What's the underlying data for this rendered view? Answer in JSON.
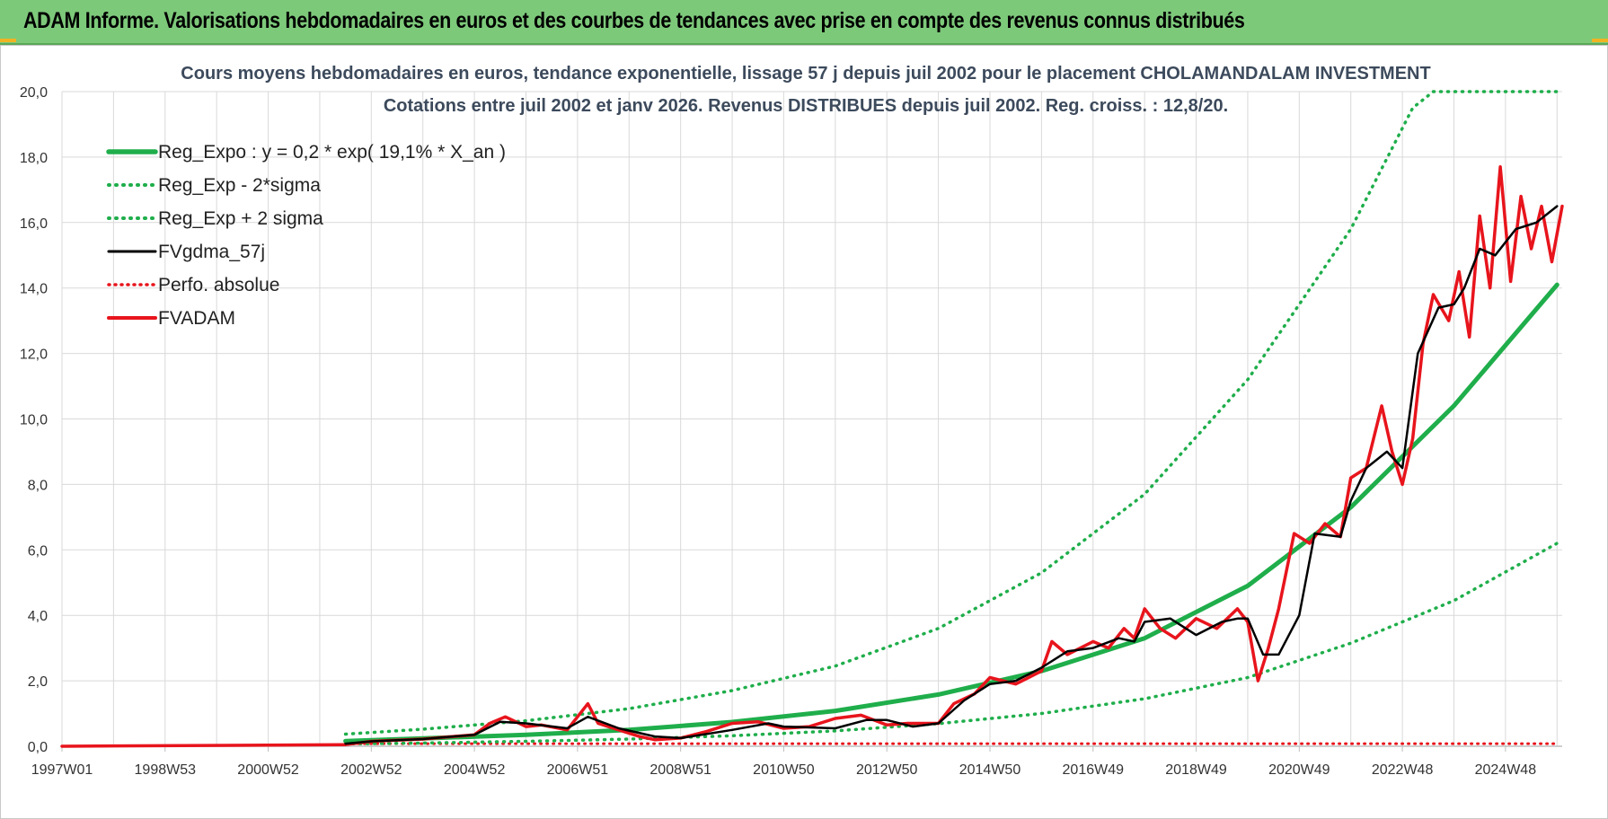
{
  "header": {
    "title": "ADAM Informe. Valorisations hebdomadaires en euros et des courbes de tendances avec prise en compte des revenus connus distribués"
  },
  "colors": {
    "banner": "#7dc97a",
    "green": "#1fae4b",
    "red": "#e8141c",
    "black": "#000000",
    "grid": "#d9d9d9"
  },
  "chart_data": {
    "type": "line",
    "title_line1": "Cours moyens hebdomadaires en euros, tendance exponentielle, lissage 57 j depuis juil 2002 pour le placement CHOLAMANDALAM INVESTMENT",
    "title_line2": "Cotations entre juil 2002 et janv 2026. Revenus DISTRIBUES depuis juil 2002. Reg. croiss. : 12,8/20.",
    "xlabel": "",
    "ylabel": "",
    "ylim": [
      0,
      20
    ],
    "y_ticks": [
      "0,0",
      "2,0",
      "4,0",
      "6,0",
      "8,0",
      "10,0",
      "12,0",
      "14,0",
      "16,0",
      "18,0",
      "20,0"
    ],
    "x_ticks": [
      "1997W01",
      "1998W53",
      "2000W52",
      "2002W52",
      "2004W52",
      "2006W51",
      "2008W51",
      "2010W50",
      "2012W50",
      "2014W50",
      "2016W49",
      "2018W49",
      "2020W49",
      "2022W48",
      "2024W48"
    ],
    "xlim": [
      1997.0,
      2026.1
    ],
    "grid": true,
    "legend_position": "top-left",
    "series": [
      {
        "name": "Reg_Expo : y = 0,2 * exp( 19,1% *  X_an )",
        "style": "solid-green",
        "x": [
          2002.5,
          2004,
          2006,
          2008,
          2010,
          2012,
          2014,
          2016,
          2018,
          2020,
          2022,
          2024,
          2026
        ],
        "y": [
          0.16,
          0.24,
          0.35,
          0.5,
          0.74,
          1.08,
          1.58,
          2.3,
          3.3,
          4.9,
          7.3,
          10.4,
          14.1
        ]
      },
      {
        "name": "Reg_Exp - 2*sigma",
        "style": "dotted-green",
        "x": [
          2002.5,
          2004,
          2006,
          2008,
          2010,
          2012,
          2014,
          2016,
          2018,
          2020,
          2022,
          2024,
          2026
        ],
        "y": [
          0.07,
          0.1,
          0.15,
          0.22,
          0.32,
          0.47,
          0.69,
          1.0,
          1.45,
          2.1,
          3.15,
          4.45,
          6.2
        ]
      },
      {
        "name": "Reg_Exp + 2 sigma",
        "style": "dotted-green",
        "x": [
          2002.5,
          2004,
          2006,
          2008,
          2010,
          2012,
          2014,
          2016,
          2018,
          2020,
          2022,
          2023.2,
          2023.6,
          2026
        ],
        "y": [
          0.37,
          0.52,
          0.78,
          1.15,
          1.7,
          2.45,
          3.6,
          5.3,
          7.7,
          11.2,
          15.8,
          19.5,
          20.0,
          20.0
        ]
      },
      {
        "name": "FVgdma_57j",
        "style": "solid-black",
        "x": [
          2002.5,
          2003,
          2004,
          2005,
          2005.5,
          2006,
          2006.8,
          2007.2,
          2007.8,
          2008.5,
          2009,
          2010,
          2010.7,
          2011,
          2012,
          2012.6,
          2013,
          2013.5,
          2014,
          2014.5,
          2015,
          2015.5,
          2016,
          2016.5,
          2017,
          2017.5,
          2017.8,
          2018,
          2018.5,
          2019,
          2019.5,
          2019.8,
          2020,
          2020.3,
          2020.6,
          2021,
          2021.3,
          2021.8,
          2022,
          2022.3,
          2022.7,
          2023,
          2023.3,
          2023.7,
          2024,
          2024.2,
          2024.5,
          2024.8,
          2025.2,
          2025.6,
          2026.0
        ],
        "y": [
          0.08,
          0.15,
          0.22,
          0.35,
          0.75,
          0.7,
          0.55,
          0.9,
          0.55,
          0.3,
          0.25,
          0.5,
          0.7,
          0.6,
          0.55,
          0.8,
          0.8,
          0.6,
          0.7,
          1.4,
          1.9,
          2.0,
          2.4,
          2.9,
          3.0,
          3.3,
          3.2,
          3.8,
          3.9,
          3.4,
          3.8,
          3.9,
          3.9,
          2.8,
          2.8,
          4.0,
          6.5,
          6.4,
          7.5,
          8.5,
          9.0,
          8.5,
          12.0,
          13.4,
          13.5,
          14.0,
          15.2,
          15.0,
          15.8,
          16.0,
          16.5
        ]
      },
      {
        "name": "Perfo. absolue",
        "style": "dotted-red",
        "x": [
          2002.5,
          2026.0
        ],
        "y": [
          0.08,
          0.08
        ]
      },
      {
        "name": "FVADAM",
        "style": "solid-red",
        "x": [
          1997.0,
          2002.5,
          2003,
          2004,
          2005,
          2005.3,
          2005.6,
          2006,
          2006.3,
          2006.8,
          2007.0,
          2007.2,
          2007.4,
          2007.8,
          2008.2,
          2008.5,
          2009,
          2009.5,
          2010,
          2010.5,
          2011,
          2011.5,
          2012,
          2012.5,
          2013,
          2013.4,
          2014,
          2014.3,
          2014.7,
          2015,
          2015.5,
          2016,
          2016.2,
          2016.5,
          2017,
          2017.3,
          2017.6,
          2017.8,
          2018,
          2018.3,
          2018.6,
          2019,
          2019.4,
          2019.8,
          2020.0,
          2020.2,
          2020.4,
          2020.6,
          2020.9,
          2021.2,
          2021.5,
          2021.8,
          2022.0,
          2022.3,
          2022.6,
          2022.8,
          2023.0,
          2023.2,
          2023.4,
          2023.6,
          2023.9,
          2024.1,
          2024.3,
          2024.5,
          2024.7,
          2024.9,
          2025.1,
          2025.3,
          2025.5,
          2025.7,
          2025.9,
          2026.1
        ],
        "y": [
          0.0,
          0.05,
          0.15,
          0.22,
          0.35,
          0.7,
          0.9,
          0.6,
          0.65,
          0.5,
          0.9,
          1.3,
          0.7,
          0.5,
          0.3,
          0.2,
          0.25,
          0.45,
          0.7,
          0.75,
          0.55,
          0.6,
          0.85,
          0.95,
          0.65,
          0.7,
          0.7,
          1.3,
          1.6,
          2.1,
          1.9,
          2.3,
          3.2,
          2.8,
          3.2,
          3.0,
          3.6,
          3.3,
          4.2,
          3.6,
          3.3,
          3.9,
          3.6,
          4.2,
          3.8,
          2.0,
          3.0,
          4.2,
          6.5,
          6.2,
          6.8,
          6.4,
          8.2,
          8.5,
          10.4,
          9.0,
          8.0,
          9.4,
          12.3,
          13.8,
          13.0,
          14.5,
          12.5,
          16.2,
          14.0,
          17.7,
          14.2,
          16.8,
          15.2,
          16.5,
          14.8,
          16.5
        ]
      }
    ]
  }
}
